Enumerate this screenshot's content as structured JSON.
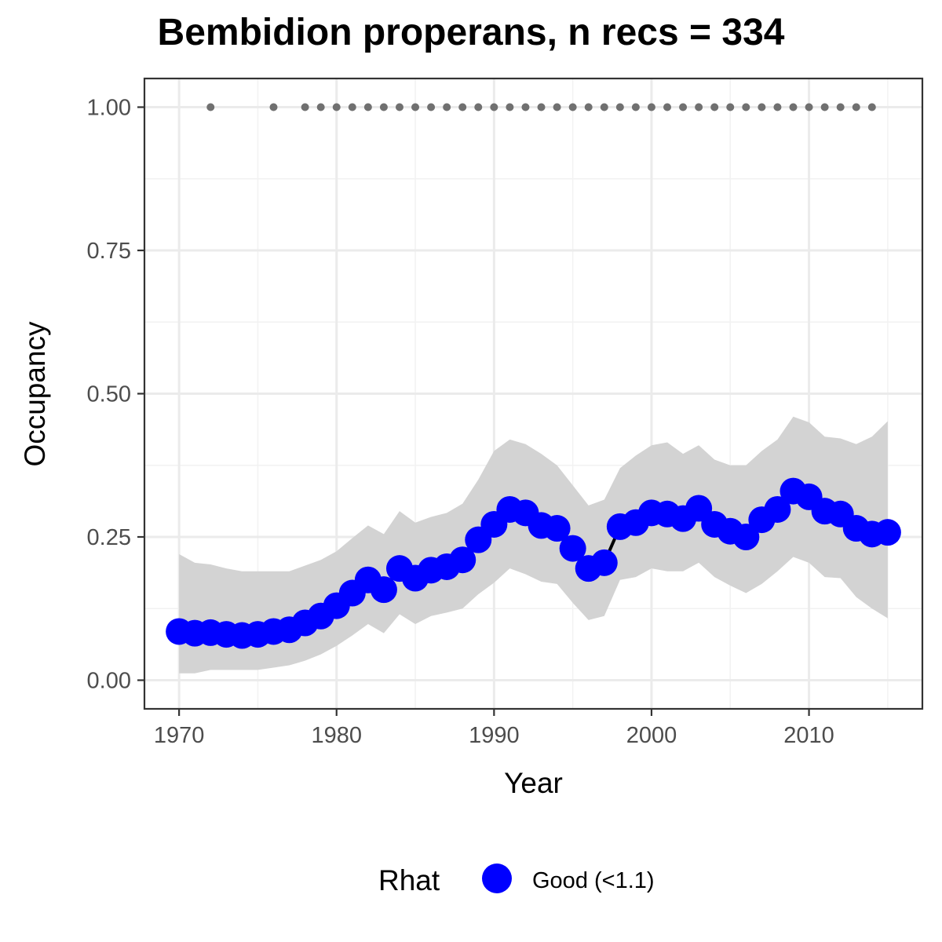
{
  "chart_data": {
    "type": "line",
    "title": "Bembidion properans, n recs = 334",
    "xlabel": "Year",
    "ylabel": "Occupancy",
    "xlim": [
      1967.8,
      1917.2
    ],
    "xticks": [
      1970,
      1980,
      1990,
      2000,
      2010
    ],
    "ylim": [
      -0.05,
      1.05
    ],
    "yticks": [
      0.0,
      0.25,
      0.5,
      0.75,
      1.0
    ],
    "ytick_labels": [
      "0.00",
      "0.25",
      "0.50",
      "0.75",
      "1.00"
    ],
    "grid": true,
    "years": [
      1970,
      1971,
      1972,
      1973,
      1974,
      1975,
      1976,
      1977,
      1978,
      1979,
      1980,
      1981,
      1982,
      1983,
      1984,
      1985,
      1986,
      1987,
      1988,
      1989,
      1990,
      1991,
      1992,
      1993,
      1994,
      1995,
      1996,
      1997,
      1998,
      1999,
      2000,
      2001,
      2002,
      2003,
      2004,
      2005,
      2006,
      2007,
      2008,
      2009,
      2010,
      2011,
      2012,
      2013,
      2014,
      2015
    ],
    "series": [
      {
        "legend_label": "Good (<1.1)",
        "color": "#0000ff",
        "values": [
          0.085,
          0.082,
          0.083,
          0.08,
          0.078,
          0.08,
          0.085,
          0.088,
          0.1,
          0.112,
          0.13,
          0.152,
          0.175,
          0.158,
          0.195,
          0.178,
          0.192,
          0.198,
          0.21,
          0.245,
          0.272,
          0.298,
          0.292,
          0.27,
          0.265,
          0.23,
          0.195,
          0.205,
          0.268,
          0.275,
          0.292,
          0.29,
          0.282,
          0.3,
          0.272,
          0.26,
          0.25,
          0.28,
          0.298,
          0.33,
          0.32,
          0.295,
          0.29,
          0.265,
          0.255,
          0.258
        ]
      }
    ],
    "ci_upper": [
      0.22,
      0.205,
      0.202,
      0.195,
      0.19,
      0.19,
      0.19,
      0.19,
      0.2,
      0.21,
      0.225,
      0.248,
      0.27,
      0.255,
      0.295,
      0.275,
      0.285,
      0.292,
      0.308,
      0.35,
      0.4,
      0.42,
      0.412,
      0.395,
      0.375,
      0.34,
      0.305,
      0.315,
      0.37,
      0.392,
      0.41,
      0.415,
      0.395,
      0.41,
      0.385,
      0.375,
      0.375,
      0.4,
      0.42,
      0.46,
      0.45,
      0.425,
      0.422,
      0.412,
      0.425,
      0.452
    ],
    "ci_lower": [
      0.012,
      0.012,
      0.018,
      0.018,
      0.018,
      0.018,
      0.022,
      0.026,
      0.034,
      0.045,
      0.06,
      0.078,
      0.098,
      0.082,
      0.115,
      0.098,
      0.112,
      0.118,
      0.125,
      0.15,
      0.17,
      0.195,
      0.185,
      0.172,
      0.168,
      0.135,
      0.105,
      0.112,
      0.175,
      0.18,
      0.195,
      0.19,
      0.19,
      0.205,
      0.18,
      0.165,
      0.152,
      0.168,
      0.19,
      0.215,
      0.205,
      0.18,
      0.178,
      0.145,
      0.125,
      0.108
    ],
    "ci_color": "#d3d3d3",
    "record_years": [
      1972,
      1976,
      1978,
      1979,
      1980,
      1981,
      1982,
      1983,
      1984,
      1985,
      1986,
      1987,
      1988,
      1989,
      1990,
      1991,
      1992,
      1993,
      1994,
      1995,
      1996,
      1997,
      1998,
      1999,
      2000,
      2001,
      2002,
      2003,
      2004,
      2005,
      2006,
      2007,
      2008,
      2009,
      2010,
      2011,
      2012,
      2013,
      2014
    ],
    "record_value": 1.0,
    "record_color": "#707070",
    "legend": {
      "title": "Rhat",
      "position": "bottom"
    }
  }
}
